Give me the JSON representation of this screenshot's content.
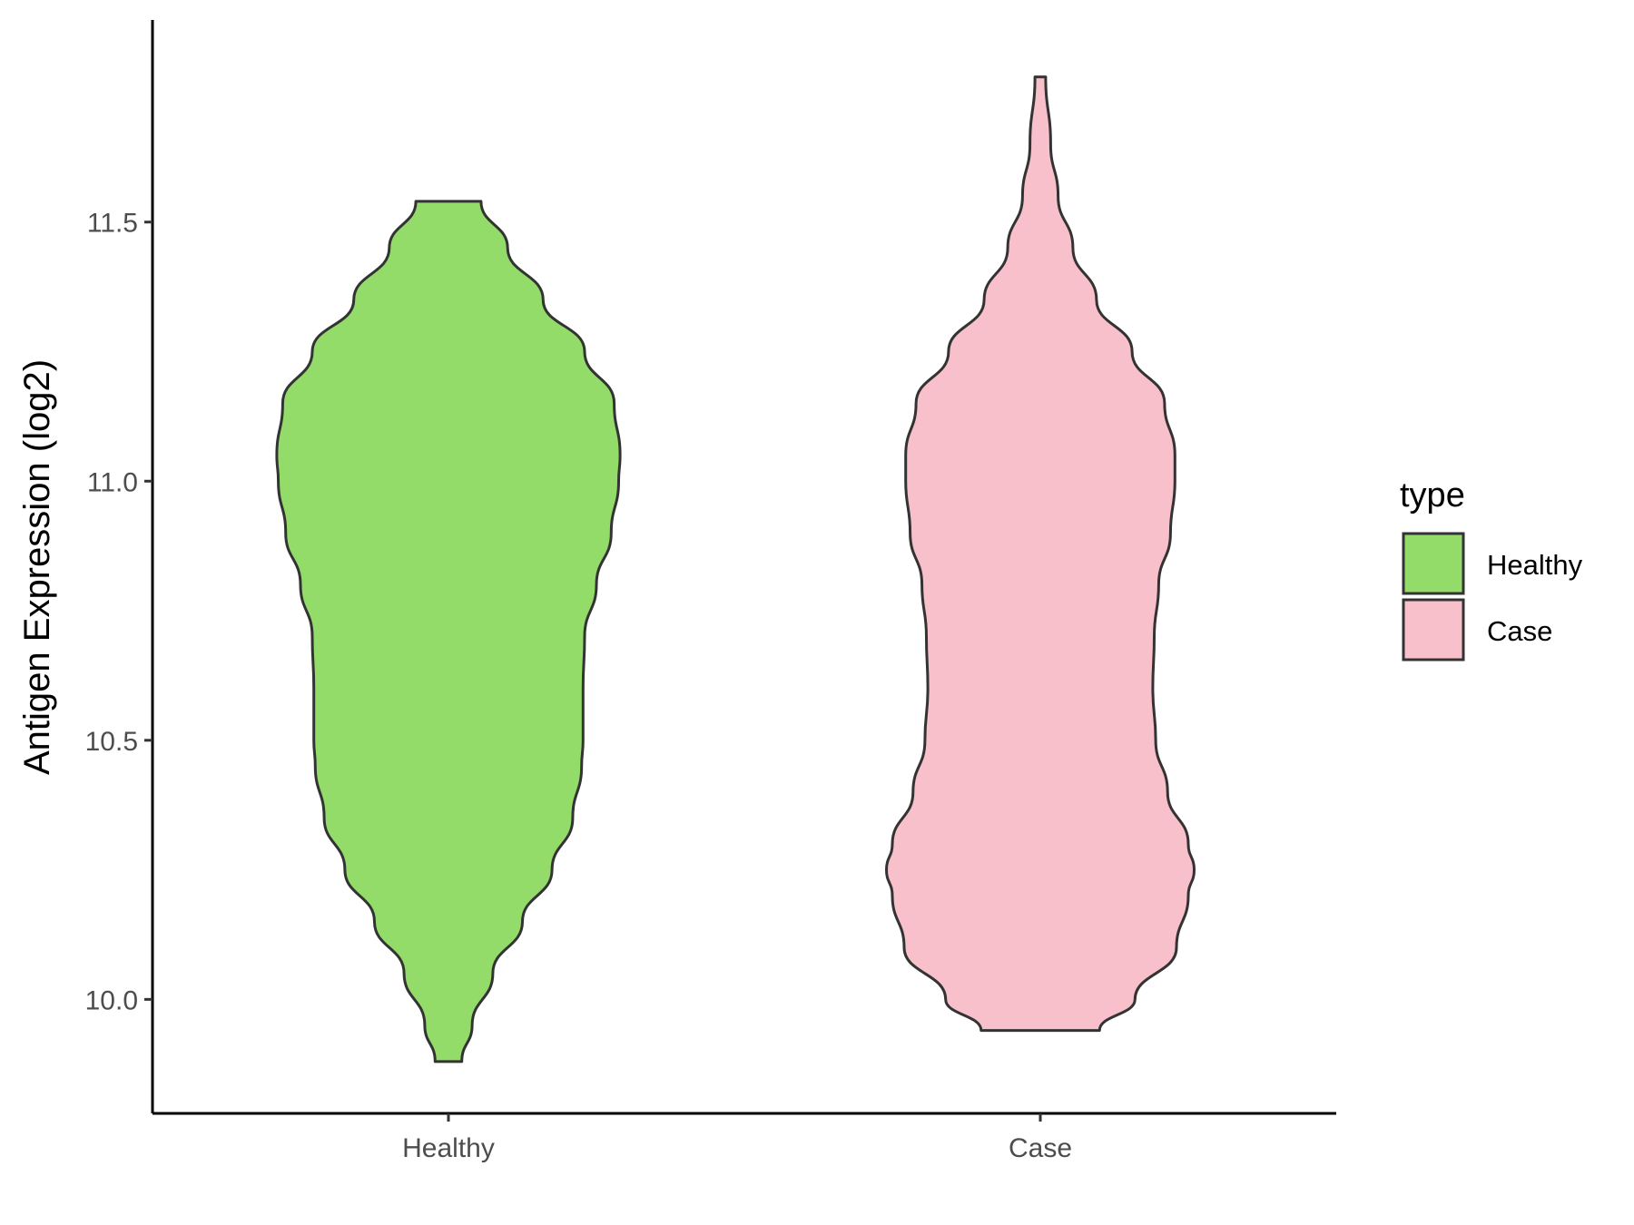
{
  "chart_data": {
    "type": "violin",
    "title": "",
    "xlabel": "",
    "ylabel": "Antigen Expression (log2)",
    "ylim": [
      9.78,
      11.89
    ],
    "yticks": [
      "10.0",
      "10.5",
      "11.0",
      "11.5"
    ],
    "categories": [
      "Healthy",
      "Case"
    ],
    "legend": {
      "title": "type",
      "position": "right",
      "entries": [
        "Healthy",
        "Case"
      ]
    },
    "grid": false,
    "series": [
      {
        "name": "Healthy",
        "color": "#93dc6a",
        "min": 9.88,
        "max": 11.54,
        "profile": [
          [
            9.88,
            0.045
          ],
          [
            9.95,
            0.08
          ],
          [
            10.05,
            0.15
          ],
          [
            10.15,
            0.25
          ],
          [
            10.25,
            0.35
          ],
          [
            10.35,
            0.42
          ],
          [
            10.45,
            0.45
          ],
          [
            10.5,
            0.455
          ],
          [
            10.6,
            0.455
          ],
          [
            10.7,
            0.46
          ],
          [
            10.8,
            0.5
          ],
          [
            10.9,
            0.55
          ],
          [
            11.0,
            0.575
          ],
          [
            11.05,
            0.58
          ],
          [
            11.15,
            0.56
          ],
          [
            11.25,
            0.46
          ],
          [
            11.35,
            0.32
          ],
          [
            11.45,
            0.2
          ],
          [
            11.54,
            0.11
          ]
        ]
      },
      {
        "name": "Case",
        "color": "#f7c0cb",
        "min": 9.94,
        "max": 11.78,
        "profile": [
          [
            9.94,
            0.2
          ],
          [
            10.0,
            0.32
          ],
          [
            10.1,
            0.46
          ],
          [
            10.2,
            0.5
          ],
          [
            10.25,
            0.52
          ],
          [
            10.3,
            0.5
          ],
          [
            10.4,
            0.43
          ],
          [
            10.5,
            0.39
          ],
          [
            10.6,
            0.38
          ],
          [
            10.7,
            0.385
          ],
          [
            10.8,
            0.4
          ],
          [
            10.9,
            0.44
          ],
          [
            11.0,
            0.455
          ],
          [
            11.05,
            0.455
          ],
          [
            11.15,
            0.42
          ],
          [
            11.25,
            0.31
          ],
          [
            11.35,
            0.19
          ],
          [
            11.45,
            0.11
          ],
          [
            11.55,
            0.06
          ],
          [
            11.65,
            0.035
          ],
          [
            11.78,
            0.018
          ]
        ]
      }
    ]
  }
}
